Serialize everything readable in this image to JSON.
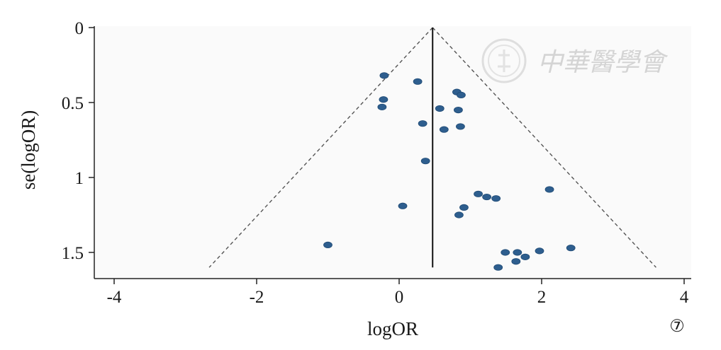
{
  "chart_data": {
    "type": "scatter",
    "xlabel": "logOR",
    "ylabel": "se(logOR)",
    "xlim": [
      -4.2,
      4.2
    ],
    "ylim": [
      0,
      1.65
    ],
    "y_inverted": true,
    "x_ticks": [
      "-4",
      "-2",
      "0",
      "2",
      "4"
    ],
    "x_tick_values": [
      -4,
      -2,
      0,
      2,
      4
    ],
    "y_ticks": [
      "0",
      "0.5",
      "1",
      "1.5"
    ],
    "y_tick_values": [
      0,
      0.5,
      1,
      1.5
    ],
    "pooled_estimate": 0.47,
    "funnel_max_se": 1.6,
    "series": [
      {
        "points": [
          {
            "x": -0.21,
            "y": 0.32
          },
          {
            "x": 0.26,
            "y": 0.36
          },
          {
            "x": 0.81,
            "y": 0.43
          },
          {
            "x": 0.87,
            "y": 0.45
          },
          {
            "x": -0.22,
            "y": 0.48
          },
          {
            "x": -0.24,
            "y": 0.53
          },
          {
            "x": 0.57,
            "y": 0.54
          },
          {
            "x": 0.83,
            "y": 0.55
          },
          {
            "x": 0.33,
            "y": 0.64
          },
          {
            "x": 0.86,
            "y": 0.66
          },
          {
            "x": 0.63,
            "y": 0.68
          },
          {
            "x": 0.37,
            "y": 0.89
          },
          {
            "x": 2.11,
            "y": 1.08
          },
          {
            "x": 1.11,
            "y": 1.11
          },
          {
            "x": 1.23,
            "y": 1.13
          },
          {
            "x": 1.36,
            "y": 1.14
          },
          {
            "x": 0.05,
            "y": 1.19
          },
          {
            "x": 0.91,
            "y": 1.2
          },
          {
            "x": 0.84,
            "y": 1.25
          },
          {
            "x": -1.0,
            "y": 1.45
          },
          {
            "x": 2.41,
            "y": 1.47
          },
          {
            "x": 1.97,
            "y": 1.49
          },
          {
            "x": 1.49,
            "y": 1.5
          },
          {
            "x": 1.66,
            "y": 1.5
          },
          {
            "x": 1.77,
            "y": 1.53
          },
          {
            "x": 1.64,
            "y": 1.56
          },
          {
            "x": 1.39,
            "y": 1.6
          }
        ]
      }
    ]
  },
  "watermark": {
    "text": "中華醫學會",
    "seal_icon": "seal-icon"
  },
  "panel_label": "⑦"
}
